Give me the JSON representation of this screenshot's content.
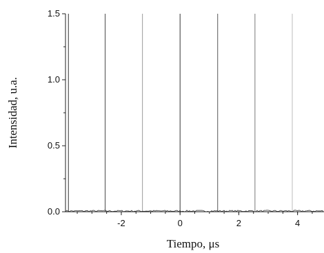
{
  "chart_data": {
    "type": "line",
    "xlabel": "Tiempo, μs",
    "ylabel": "Intensidad, u.a.",
    "xlim": [
      -3.9,
      4.9
    ],
    "ylim": [
      0,
      1.5
    ],
    "xticks": [
      -2,
      0,
      2,
      4
    ],
    "xtick_labels": [
      "-2",
      "0",
      "2",
      "4"
    ],
    "yticks": [
      0.0,
      0.5,
      1.0,
      1.5
    ],
    "ytick_labels": [
      "0.0",
      "0.5",
      "1.0",
      "1.5"
    ],
    "grid": false,
    "series": [
      {
        "pulse_times": [
          -3.8,
          -2.55,
          -1.28,
          0.0,
          1.28,
          2.55,
          3.82
        ],
        "pulse_peaks": [
          1.5,
          1.5,
          1.5,
          1.5,
          1.5,
          1.5,
          1.5
        ],
        "baseline": 0.0,
        "pulse_colors": [
          "#333333",
          "#4a4a4a",
          "#999999",
          "#333333",
          "#555555",
          "#777777",
          "#bbbbbb"
        ]
      }
    ]
  }
}
